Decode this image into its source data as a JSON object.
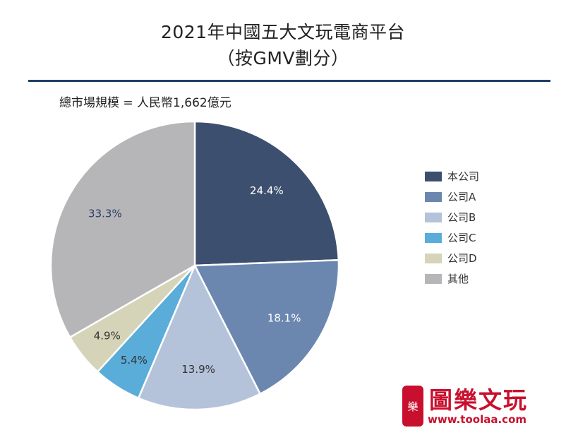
{
  "header": {
    "title_line1": "2021年中國五大文玩電商平台",
    "title_line2": "（按GMV劃分）"
  },
  "market_size": "總市場規模 = 人民幣1,662億元",
  "chart_data": {
    "type": "pie",
    "title": "2021年中國五大文玩電商平台（按GMV劃分）",
    "subtitle": "總市場規模 = 人民幣1,662億元",
    "slices": [
      {
        "label": "本公司",
        "value": 24.4,
        "display": "24.4%",
        "color": "#3d4f6e",
        "text_color": "#ffffff"
      },
      {
        "label": "公司A",
        "value": 18.1,
        "display": "18.1%",
        "color": "#6b87b0",
        "text_color": "#ffffff"
      },
      {
        "label": "公司B",
        "value": 13.9,
        "display": "13.9%",
        "color": "#b4c3da",
        "text_color": "#333333"
      },
      {
        "label": "公司C",
        "value": 5.4,
        "display": "5.4%",
        "color": "#5aacd9",
        "text_color": "#333333"
      },
      {
        "label": "公司D",
        "value": 4.9,
        "display": "4.9%",
        "color": "#d5d4b9",
        "text_color": "#333333"
      },
      {
        "label": "其他",
        "value": 33.3,
        "display": "33.3%",
        "color": "#b6b6b8",
        "text_color": "#2c3c66"
      }
    ],
    "start": "12 o'clock",
    "direction": "clockwise",
    "legend_position": "right"
  },
  "watermark": {
    "seal_text": "樂",
    "title": "圖樂文玩",
    "url": "www.toolaa.com"
  }
}
